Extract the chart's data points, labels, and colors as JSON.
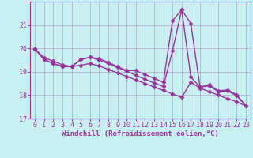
{
  "background_color": "#c8f0f0",
  "line_color": "#993399",
  "marker": "D",
  "markersize": 2.5,
  "linewidth": 1.0,
  "xlabel": "Windchill (Refroidissement éolien,°C)",
  "xlabel_fontsize": 6.5,
  "tick_fontsize": 6.0,
  "xlim": [
    -0.5,
    23.5
  ],
  "ylim": [
    17,
    22
  ],
  "yticks": [
    17,
    18,
    19,
    20,
    21
  ],
  "xticks": [
    0,
    1,
    2,
    3,
    4,
    5,
    6,
    7,
    8,
    9,
    10,
    11,
    12,
    13,
    14,
    15,
    16,
    17,
    18,
    19,
    20,
    21,
    22,
    23
  ],
  "series1_x": [
    0,
    1,
    2,
    3,
    4,
    5,
    6,
    7,
    8,
    9,
    10,
    11,
    12,
    13,
    14,
    15,
    16,
    17,
    18,
    19,
    20,
    21,
    22,
    23
  ],
  "series1_y": [
    19.97,
    19.52,
    19.35,
    19.22,
    19.22,
    19.52,
    19.62,
    19.56,
    19.4,
    19.22,
    19.05,
    19.05,
    18.88,
    18.72,
    18.55,
    21.18,
    21.65,
    21.06,
    18.34,
    18.45,
    18.18,
    18.22,
    18.02,
    17.53
  ],
  "series2_x": [
    0,
    1,
    2,
    3,
    4,
    5,
    6,
    7,
    8,
    9,
    10,
    11,
    12,
    13,
    14,
    15,
    16,
    17,
    18,
    19,
    20,
    21,
    22,
    23
  ],
  "series2_y": [
    19.97,
    19.52,
    19.35,
    19.22,
    19.22,
    19.52,
    19.62,
    19.5,
    19.35,
    19.18,
    19.02,
    18.85,
    18.68,
    18.52,
    18.37,
    19.9,
    21.65,
    18.78,
    18.34,
    18.4,
    18.15,
    18.18,
    17.98,
    17.53
  ],
  "series3_x": [
    0,
    1,
    2,
    3,
    4,
    5,
    6,
    7,
    8,
    9,
    10,
    11,
    12,
    13,
    14,
    15,
    16,
    17,
    18,
    19,
    20,
    21,
    22,
    23
  ],
  "series3_y": [
    19.97,
    19.6,
    19.45,
    19.3,
    19.22,
    19.28,
    19.35,
    19.25,
    19.1,
    18.95,
    18.8,
    18.65,
    18.5,
    18.35,
    18.2,
    18.05,
    17.9,
    18.55,
    18.3,
    18.15,
    18.0,
    17.85,
    17.72,
    17.53
  ]
}
